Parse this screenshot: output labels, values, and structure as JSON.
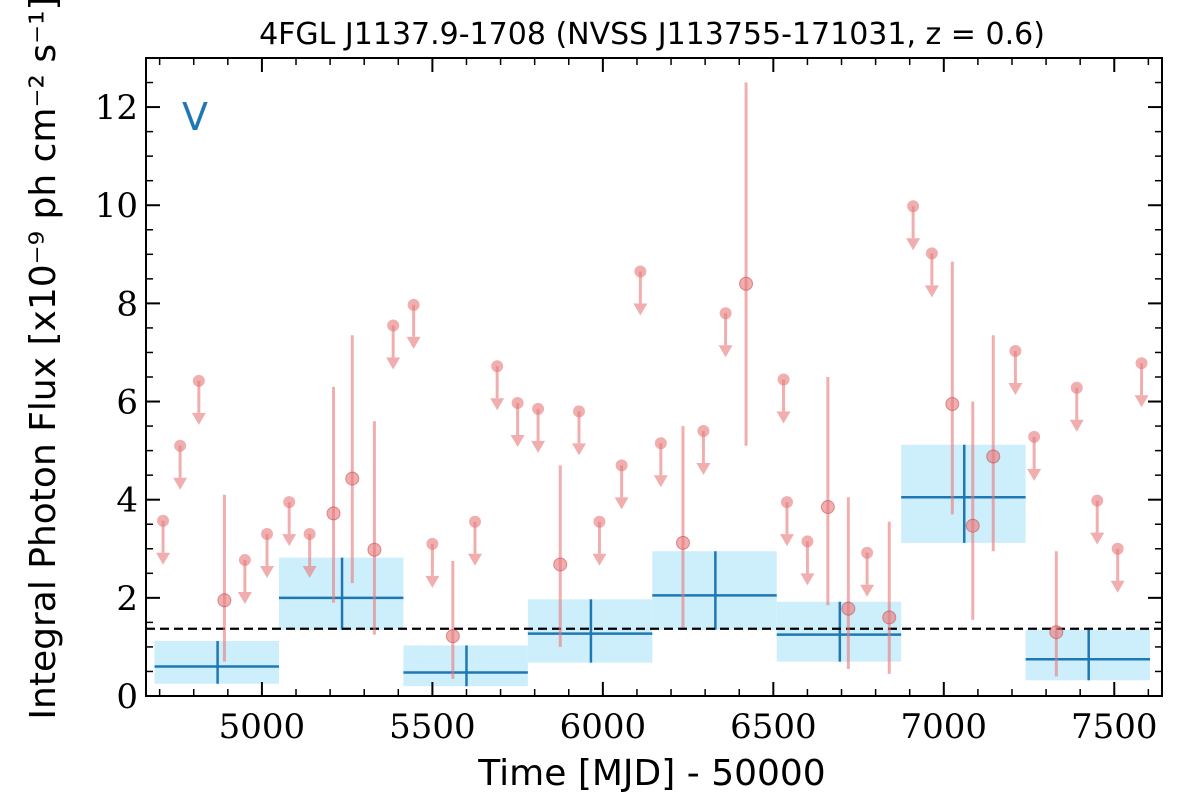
{
  "chart_data": {
    "type": "scatter",
    "title": "4FGL J1137.9-1708 (NVSS J113755-171031, z = 0.6)",
    "xlabel": "Time [MJD] - 50000",
    "ylabel": "Integral Photon Flux [x10⁻⁹ ph cm⁻² s⁻¹]",
    "xlim": [
      4660,
      7640
    ],
    "ylim": [
      0,
      13
    ],
    "x_ticks": [
      5000,
      5500,
      6000,
      6500,
      7000,
      7500
    ],
    "y_ticks": [
      0,
      2,
      4,
      6,
      8,
      10,
      12
    ],
    "x_tick_labels": [
      "5000",
      "5500",
      "6000",
      "6500",
      "7000",
      "7500"
    ],
    "y_tick_labels": [
      "0",
      "2",
      "4",
      "6",
      "8",
      "10",
      "12"
    ],
    "annotation": "V",
    "reference_line": 1.37,
    "colors": {
      "points": "#e8787a",
      "bins_fill": "#cdeefb",
      "bins_line": "#1f77b4",
      "annotation": "#1f77b4",
      "reference": "#000000"
    },
    "detections": [
      {
        "x": 4890,
        "y": 1.95,
        "lo": 0.7,
        "hi": 4.1
      },
      {
        "x": 5210,
        "y": 3.72,
        "lo": 1.9,
        "hi": 6.3
      },
      {
        "x": 5265,
        "y": 4.43,
        "lo": 2.3,
        "hi": 7.35
      },
      {
        "x": 5330,
        "y": 2.98,
        "lo": 1.25,
        "hi": 5.6
      },
      {
        "x": 5560,
        "y": 1.22,
        "lo": 0.35,
        "hi": 2.75
      },
      {
        "x": 5875,
        "y": 2.68,
        "lo": 1.0,
        "hi": 4.7
      },
      {
        "x": 6235,
        "y": 3.12,
        "lo": 1.4,
        "hi": 5.5
      },
      {
        "x": 6420,
        "y": 8.4,
        "lo": 5.1,
        "hi": 12.5
      },
      {
        "x": 6660,
        "y": 3.85,
        "lo": 1.85,
        "hi": 6.5
      },
      {
        "x": 6720,
        "y": 1.78,
        "lo": 0.55,
        "hi": 4.05
      },
      {
        "x": 6840,
        "y": 1.6,
        "lo": 0.45,
        "hi": 3.55
      },
      {
        "x": 7025,
        "y": 5.95,
        "lo": 3.7,
        "hi": 8.85
      },
      {
        "x": 7085,
        "y": 3.47,
        "lo": 1.55,
        "hi": 6.0
      },
      {
        "x": 7145,
        "y": 4.88,
        "lo": 2.95,
        "hi": 7.35
      },
      {
        "x": 7330,
        "y": 1.3,
        "lo": 0.4,
        "hi": 2.95
      }
    ],
    "upper_limits": [
      {
        "x": 4710,
        "y": 3.57
      },
      {
        "x": 4760,
        "y": 5.1
      },
      {
        "x": 4815,
        "y": 6.42
      },
      {
        "x": 4950,
        "y": 2.77
      },
      {
        "x": 5015,
        "y": 3.3
      },
      {
        "x": 5080,
        "y": 3.95
      },
      {
        "x": 5140,
        "y": 3.3
      },
      {
        "x": 5385,
        "y": 7.55
      },
      {
        "x": 5445,
        "y": 7.97
      },
      {
        "x": 5500,
        "y": 3.1
      },
      {
        "x": 5625,
        "y": 3.55
      },
      {
        "x": 5690,
        "y": 6.72
      },
      {
        "x": 5750,
        "y": 5.97
      },
      {
        "x": 5810,
        "y": 5.85
      },
      {
        "x": 5930,
        "y": 5.8
      },
      {
        "x": 5990,
        "y": 3.55
      },
      {
        "x": 6055,
        "y": 4.7
      },
      {
        "x": 6110,
        "y": 8.65
      },
      {
        "x": 6170,
        "y": 5.15
      },
      {
        "x": 6295,
        "y": 5.4
      },
      {
        "x": 6360,
        "y": 7.8
      },
      {
        "x": 6530,
        "y": 6.45
      },
      {
        "x": 6540,
        "y": 3.95
      },
      {
        "x": 6600,
        "y": 3.15
      },
      {
        "x": 6775,
        "y": 2.92
      },
      {
        "x": 6910,
        "y": 9.98
      },
      {
        "x": 6965,
        "y": 9.02
      },
      {
        "x": 7210,
        "y": 7.03
      },
      {
        "x": 7265,
        "y": 5.28
      },
      {
        "x": 7390,
        "y": 6.28
      },
      {
        "x": 7450,
        "y": 3.98
      },
      {
        "x": 7510,
        "y": 3.0
      },
      {
        "x": 7580,
        "y": 6.78
      }
    ],
    "bins": [
      {
        "x0": 4685,
        "x1": 5050,
        "y": 0.6,
        "lo": 0.25,
        "hi": 1.12,
        "xc": 4870
      },
      {
        "x0": 5050,
        "x1": 5415,
        "y": 2.0,
        "lo": 1.35,
        "hi": 2.82,
        "xc": 5235
      },
      {
        "x0": 5415,
        "x1": 5780,
        "y": 0.48,
        "lo": 0.2,
        "hi": 1.03,
        "xc": 5600
      },
      {
        "x0": 5780,
        "x1": 6145,
        "y": 1.27,
        "lo": 0.68,
        "hi": 1.97,
        "xc": 5965
      },
      {
        "x0": 6145,
        "x1": 6510,
        "y": 2.05,
        "lo": 1.35,
        "hi": 2.95,
        "xc": 6330
      },
      {
        "x0": 6510,
        "x1": 6875,
        "y": 1.25,
        "lo": 0.7,
        "hi": 1.92,
        "xc": 6695
      },
      {
        "x0": 6875,
        "x1": 7240,
        "y": 4.05,
        "lo": 3.12,
        "hi": 5.12,
        "xc": 7060
      },
      {
        "x0": 7240,
        "x1": 7605,
        "y": 0.75,
        "lo": 0.32,
        "hi": 1.35,
        "xc": 7425
      }
    ]
  }
}
